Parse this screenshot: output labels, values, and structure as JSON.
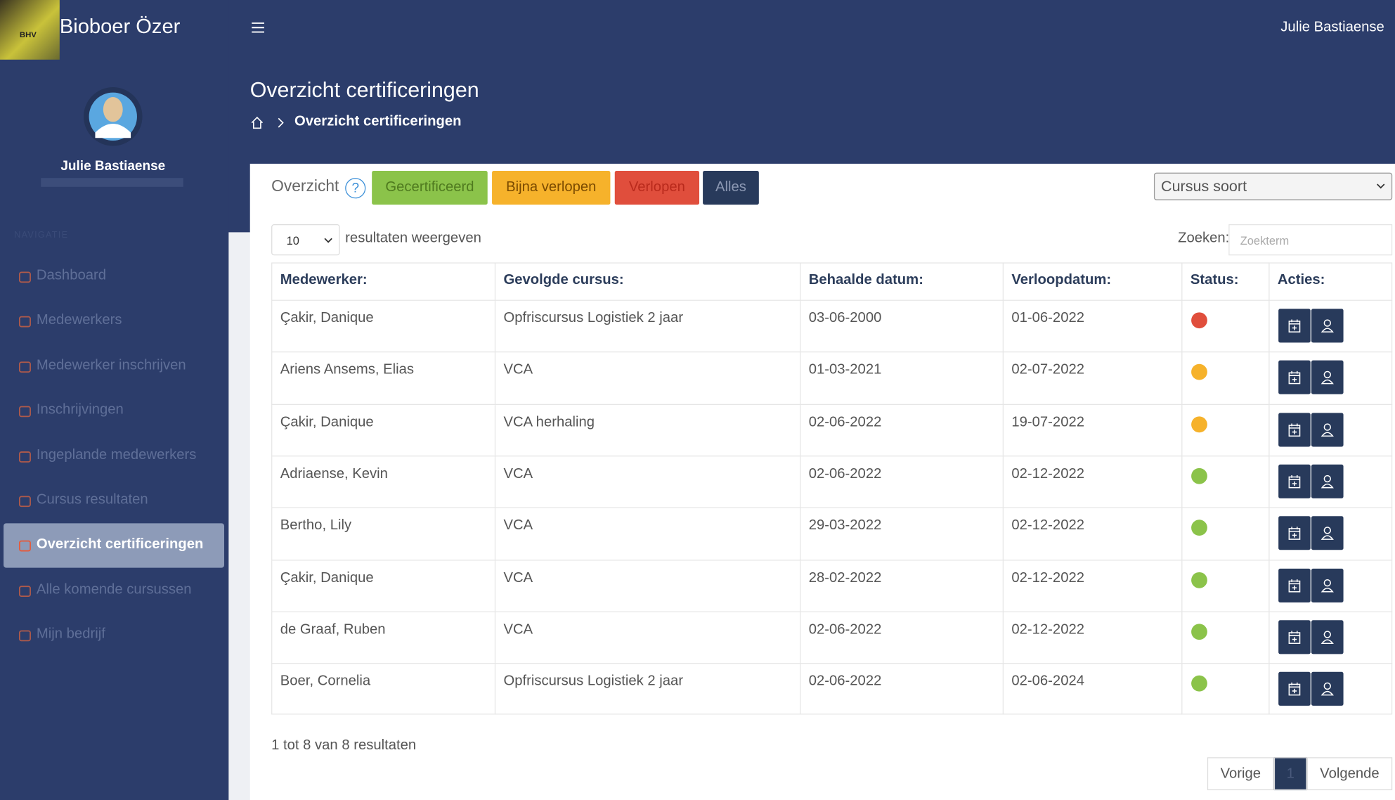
{
  "header": {
    "brand": "Bioboer Özer",
    "user": "Julie Bastiaense"
  },
  "sidebar": {
    "user_name": "Julie Bastiaense",
    "section": "NAVIGATIE",
    "items": [
      "Dashboard",
      "Medewerkers",
      "Medewerker inschrijven",
      "Inschrijvingen",
      "Ingeplande medewerkers",
      "Cursus resultaten",
      "Overzicht certificeringen",
      "Alle komende cursussen",
      "Mijn bedrijf"
    ],
    "active": 6
  },
  "page": {
    "title": "Overzicht certificeringen",
    "breadcrumb": "Overzicht certificeringen"
  },
  "filters": {
    "label": "Overzicht",
    "help": "?",
    "buttons": [
      {
        "label": "Gecertificeerd",
        "bg": "#8bc34a",
        "fg": "#4f7a1f"
      },
      {
        "label": "Bijna verlopen",
        "bg": "#f6b22b",
        "fg": "#7a4a00"
      },
      {
        "label": "Verlopen",
        "bg": "#e04e3c",
        "fg": "#b92a1c"
      },
      {
        "label": "Alles",
        "bg": "#283a5b",
        "fg": "#8c98b3"
      }
    ],
    "course_select": "Cursus soort"
  },
  "table_controls": {
    "page_length": "10",
    "length_text": "resultaten weergeven",
    "search_label": "Zoeken:",
    "search_placeholder": "Zoekterm"
  },
  "table": {
    "headers": [
      "Medewerker:",
      "Gevolgde cursus:",
      "Behaalde datum:",
      "Verloopdatum:",
      "Status:",
      "Acties:"
    ],
    "rows": [
      {
        "cells": [
          "Çakir, Danique",
          "Opfriscursus Logistiek 2 jaar",
          "03-06-2000",
          "01-06-2022"
        ],
        "status": "#e04e3c"
      },
      {
        "cells": [
          "Ariens Ansems, Elias",
          "VCA",
          "01-03-2021",
          "02-07-2022"
        ],
        "status": "#f6b22b"
      },
      {
        "cells": [
          "Çakir, Danique",
          "VCA herhaling",
          "02-06-2022",
          "19-07-2022"
        ],
        "status": "#f6b22b"
      },
      {
        "cells": [
          "Adriaense, Kevin",
          "VCA",
          "02-06-2022",
          "02-12-2022"
        ],
        "status": "#8bc34a"
      },
      {
        "cells": [
          "Bertho, Lily",
          "VCA",
          "29-03-2022",
          "02-12-2022"
        ],
        "status": "#8bc34a"
      },
      {
        "cells": [
          "Çakir, Danique",
          "VCA",
          "28-02-2022",
          "02-12-2022"
        ],
        "status": "#8bc34a"
      },
      {
        "cells": [
          "de Graaf, Ruben",
          "VCA",
          "02-06-2022",
          "02-12-2022"
        ],
        "status": "#8bc34a"
      },
      {
        "cells": [
          "Boer, Cornelia",
          "Opfriscursus Logistiek 2 jaar",
          "02-06-2022",
          "02-06-2024"
        ],
        "status": "#8bc34a"
      }
    ]
  },
  "footer": {
    "info": "1 tot 8 van 8 resultaten",
    "pagination": [
      "Vorige",
      "1",
      "Volgende"
    ]
  }
}
